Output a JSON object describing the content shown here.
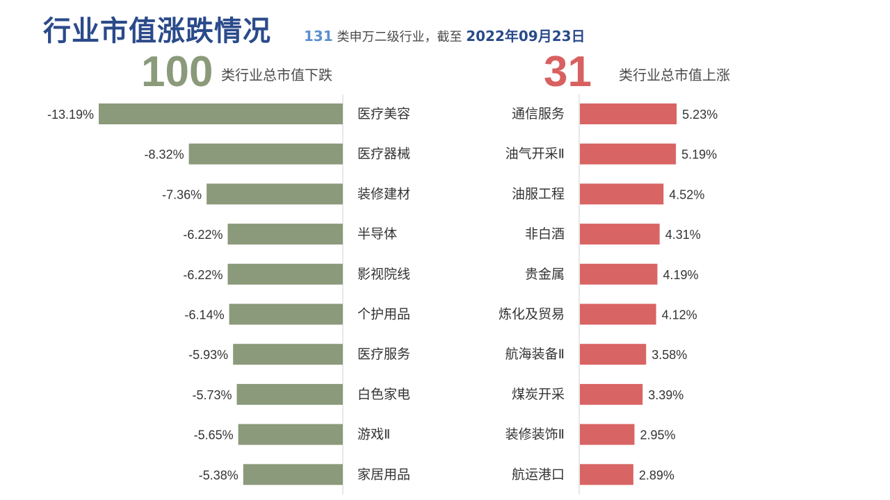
{
  "header": {
    "title": "行业市值涨跌情况",
    "subtitle_count": "131",
    "subtitle_mid": " 类申万二级行业，截至 ",
    "subtitle_date": "2022年09月23日"
  },
  "summary": {
    "down_count": "100",
    "down_label": "类行业总市值下跌",
    "up_count": "31",
    "up_label": "类行业总市值上涨"
  },
  "colors": {
    "down_bar": "#8a9a7a",
    "up_bar": "#d96464",
    "label": "#333333",
    "axis": "#d0d0d0"
  },
  "chart_data": [
    {
      "type": "bar",
      "orientation": "horizontal",
      "title": "",
      "categories": [
        "医疗美容",
        "医疗器械",
        "装修建材",
        "半导体",
        "影视院线",
        "个护用品",
        "医疗服务",
        "白色家电",
        "游戏Ⅱ",
        "家居用品"
      ],
      "values": [
        -13.19,
        -8.32,
        -7.36,
        -6.22,
        -6.22,
        -6.14,
        -5.93,
        -5.73,
        -5.65,
        -5.38
      ],
      "value_labels": [
        "-13.19%",
        "-8.32%",
        "-7.36%",
        "-6.22%",
        "-6.22%",
        "-6.14%",
        "-5.93%",
        "-5.73%",
        "-5.65%",
        "-5.38%"
      ],
      "unit": "%",
      "xlim": [
        -13.19,
        0
      ]
    },
    {
      "type": "bar",
      "orientation": "horizontal",
      "title": "",
      "categories": [
        "通信服务",
        "油气开采Ⅱ",
        "油服工程",
        "非白酒",
        "贵金属",
        "炼化及贸易",
        "航海装备Ⅱ",
        "煤炭开采",
        "装修装饰Ⅱ",
        "航运港口"
      ],
      "values": [
        5.23,
        5.19,
        4.52,
        4.31,
        4.19,
        4.12,
        3.58,
        3.39,
        2.95,
        2.89
      ],
      "value_labels": [
        "5.23%",
        "5.19%",
        "4.52%",
        "4.31%",
        "4.19%",
        "4.12%",
        "3.58%",
        "3.39%",
        "2.95%",
        "2.89%"
      ],
      "unit": "%",
      "xlim": [
        0,
        13.19
      ]
    }
  ]
}
